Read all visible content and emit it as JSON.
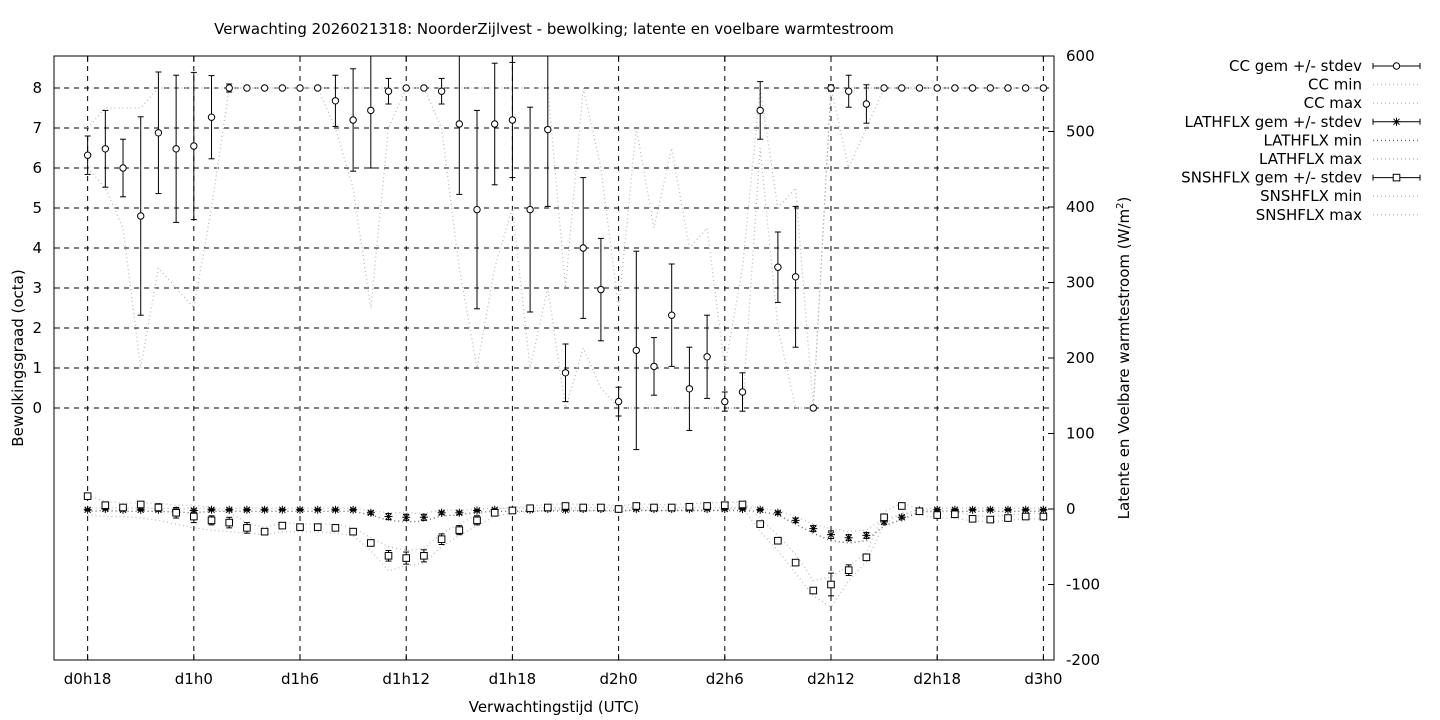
{
  "chart_data": {
    "type": "line",
    "title": "Verwachting 2026021318: NoorderZijlvest - bewolking; latente en voelbare warmtestroom",
    "xlabel": "Verwachtingstijd (UTC)",
    "ylabel_left": "Bewolkingsgraad (octa)",
    "ylabel_right": "Latente en Voelbare warmtestroom (W/m",
    "ylabel_right_sup": "2",
    "ylabel_right_close": ")",
    "x_unit": "hours since d0h0",
    "xlim": [
      16.1,
      72.6
    ],
    "ylim_left": [
      -6.3,
      8.8
    ],
    "ylim_right": [
      -200,
      600
    ],
    "grid": true,
    "legend_position": "outside right",
    "x_ticks": [
      {
        "x": 18,
        "label": "d0h18"
      },
      {
        "x": 24,
        "label": "d1h0"
      },
      {
        "x": 30,
        "label": "d1h6"
      },
      {
        "x": 36,
        "label": "d1h12"
      },
      {
        "x": 42,
        "label": "d1h18"
      },
      {
        "x": 48,
        "label": "d2h0"
      },
      {
        "x": 54,
        "label": "d2h6"
      },
      {
        "x": 60,
        "label": "d2h12"
      },
      {
        "x": 66,
        "label": "d2h18"
      },
      {
        "x": 72,
        "label": "d3h0"
      }
    ],
    "y_ticks_left": [
      "0",
      "1",
      "2",
      "3",
      "4",
      "5",
      "6",
      "7",
      "8"
    ],
    "y_ticks_right": [
      "-200",
      "-100",
      "0",
      "100",
      "200",
      "300",
      "400",
      "500",
      "600"
    ],
    "legend": [
      {
        "label": "CC gem +/- stdev",
        "style": "errorbar-circle"
      },
      {
        "label": "CC min",
        "style": "dotted"
      },
      {
        "label": "CC max",
        "style": "dotted"
      },
      {
        "label": "LATHFLX gem +/- stdev",
        "style": "errorbar-star"
      },
      {
        "label": "LATHFLX min",
        "style": "dotted-dark"
      },
      {
        "label": "LATHFLX max",
        "style": "dotted"
      },
      {
        "label": "SNSHFLX gem +/- stdev",
        "style": "errorbar-square"
      },
      {
        "label": "SNSHFLX min",
        "style": "dotted"
      },
      {
        "label": "SNSHFLX max",
        "style": "dotted"
      }
    ],
    "colors": {
      "axis": "#000000",
      "grid": "#000000",
      "dotted_light": "#bbbbbb",
      "dotted_dark": "#666666"
    },
    "x": [
      18,
      19,
      20,
      21,
      22,
      23,
      24,
      25,
      26,
      27,
      28,
      29,
      30,
      31,
      32,
      33,
      34,
      35,
      36,
      37,
      38,
      39,
      40,
      41,
      42,
      43,
      44,
      45,
      46,
      47,
      48,
      49,
      50,
      51,
      52,
      53,
      54,
      55,
      56,
      57,
      58,
      59,
      60,
      61,
      62,
      63,
      64,
      65,
      66,
      67,
      68,
      69,
      70,
      71,
      72
    ],
    "series": [
      {
        "name": "CC gem +/- stdev",
        "axis": "left",
        "values": [
          6.32,
          6.48,
          6.0,
          4.8,
          6.88,
          6.48,
          6.55,
          7.27,
          8.0,
          8.0,
          8.0,
          8.0,
          8.0,
          8.0,
          7.68,
          7.2,
          7.44,
          7.92,
          8.0,
          8.0,
          7.92,
          7.1,
          4.96,
          7.1,
          7.2,
          4.96,
          6.96,
          0.88,
          4.0,
          2.96,
          0.16,
          1.44,
          1.04,
          2.32,
          0.48,
          1.28,
          0.16,
          0.4,
          7.44,
          3.52,
          3.28,
          0.0,
          8.0,
          7.92,
          7.6,
          8.0,
          8.0,
          8.0,
          8.0,
          8.0,
          8.0,
          8.0,
          8.0,
          8.0,
          8.0
        ],
        "errors": [
          0.48,
          0.96,
          0.72,
          2.48,
          1.52,
          1.84,
          1.84,
          1.04,
          0.1,
          0,
          0,
          0,
          0,
          0,
          0.64,
          1.28,
          1.44,
          0.32,
          0,
          0,
          0.32,
          1.76,
          2.48,
          1.52,
          1.44,
          2.56,
          1.92,
          0.72,
          1.76,
          1.28,
          0.36,
          2.48,
          0.72,
          1.28,
          1.04,
          1.04,
          0.24,
          0.48,
          0.72,
          0.88,
          1.76,
          0.05,
          0.08,
          0.4,
          0.48,
          0,
          0,
          0,
          0,
          0,
          0,
          0,
          0,
          0,
          0
        ]
      },
      {
        "name": "CC min",
        "axis": "left",
        "values": [
          6.0,
          5.5,
          4.5,
          1.0,
          3.5,
          3.0,
          2.5,
          5.0,
          8.0,
          8.0,
          8.0,
          8.0,
          8.0,
          8.0,
          7.0,
          5.5,
          2.5,
          7.0,
          8.0,
          8.0,
          7.0,
          3.5,
          1.0,
          3.5,
          5.0,
          1.0,
          3.0,
          0.0,
          1.5,
          0.5,
          0.0,
          0.0,
          0.0,
          0.0,
          0.0,
          0.0,
          0.0,
          0.0,
          6.5,
          2.0,
          0.0,
          0.0,
          8.0,
          6.0,
          7.0,
          8.0,
          8.0,
          8.0,
          8.0,
          8.0,
          8.0,
          8.0,
          8.0,
          8.0,
          8.0
        ]
      },
      {
        "name": "CC max",
        "axis": "left",
        "values": [
          7.0,
          7.5,
          7.5,
          7.5,
          8.0,
          8.0,
          8.0,
          8.0,
          8.0,
          8.0,
          8.0,
          8.0,
          8.0,
          8.0,
          8.0,
          8.0,
          8.0,
          8.0,
          8.0,
          8.0,
          8.0,
          8.0,
          8.0,
          8.0,
          8.0,
          8.0,
          8.0,
          3.0,
          8.0,
          6.0,
          2.5,
          7.0,
          4.5,
          6.5,
          4.0,
          4.5,
          1.0,
          3.5,
          8.0,
          5.0,
          5.5,
          0.0,
          8.0,
          8.0,
          8.0,
          8.0,
          8.0,
          8.0,
          8.0,
          8.0,
          8.0,
          8.0,
          8.0,
          8.0,
          8.0
        ]
      },
      {
        "name": "LATHFLX gem +/- stdev",
        "axis": "right",
        "values": [
          -1,
          0,
          -1,
          -1,
          -1,
          -2,
          -2,
          -1,
          -1,
          -1,
          -1,
          -1,
          -1,
          -1,
          -1,
          -1,
          -5,
          -10,
          -11,
          -11,
          -5,
          -5,
          -2,
          -1,
          -1,
          -1,
          0,
          -1,
          0,
          0,
          0,
          0,
          0,
          0,
          0,
          0,
          0,
          0,
          -1,
          -5,
          -15,
          -26,
          -34,
          -38,
          -35,
          -17,
          -11,
          -2,
          -1,
          -1,
          -1,
          -1,
          -1,
          -1,
          -1
        ],
        "errors": [
          1,
          1,
          1,
          1,
          1,
          1,
          2,
          1,
          1,
          1,
          1,
          1,
          1,
          1,
          1,
          1,
          2,
          4,
          4,
          4,
          2,
          2,
          1,
          1,
          1,
          1,
          1,
          1,
          1,
          1,
          1,
          1,
          1,
          1,
          1,
          1,
          1,
          1,
          1,
          2,
          3,
          4,
          5,
          4,
          4,
          3,
          2,
          1,
          1,
          1,
          1,
          1,
          1,
          1,
          1
        ]
      },
      {
        "name": "LATHFLX min",
        "axis": "right",
        "values": [
          -3,
          -2,
          -3,
          -3,
          -3,
          -4,
          -5,
          -3,
          -3,
          -3,
          -3,
          -3,
          -3,
          -3,
          -3,
          -3,
          -8,
          -15,
          -17,
          -16,
          -9,
          -8,
          -4,
          -3,
          -3,
          -3,
          -2,
          -3,
          -2,
          -2,
          -2,
          -2,
          -2,
          -2,
          -2,
          -2,
          -2,
          -2,
          -3,
          -8,
          -20,
          -32,
          -42,
          -45,
          -42,
          -22,
          -14,
          -4,
          -3,
          -3,
          -3,
          -3,
          -3,
          -3,
          -3
        ]
      },
      {
        "name": "LATHFLX max",
        "axis": "right",
        "values": [
          1,
          2,
          1,
          1,
          1,
          0,
          1,
          1,
          1,
          1,
          1,
          1,
          1,
          1,
          1,
          1,
          -2,
          -5,
          -5,
          -6,
          -1,
          -2,
          0,
          1,
          1,
          1,
          2,
          1,
          2,
          2,
          2,
          2,
          2,
          2,
          2,
          2,
          2,
          2,
          1,
          -2,
          -10,
          -20,
          -26,
          -30,
          -28,
          -12,
          -8,
          0,
          1,
          1,
          1,
          1,
          1,
          1,
          1
        ]
      },
      {
        "name": "SNSHFLX gem +/- stdev",
        "axis": "right",
        "values": [
          17,
          5,
          2,
          6,
          2,
          -5,
          -10,
          -15,
          -18,
          -25,
          -30,
          -22,
          -24,
          -24,
          -25,
          -30,
          -45,
          -62,
          -65,
          -62,
          -40,
          -28,
          -15,
          -5,
          -2,
          1,
          2,
          4,
          2,
          2,
          0,
          4,
          2,
          2,
          3,
          4,
          5,
          6,
          -20,
          -42,
          -71,
          -108,
          -100,
          -81,
          -64,
          -11,
          4,
          -3,
          -8,
          -7,
          -13,
          -14,
          -12,
          -10,
          -10
        ],
        "errors": [
          3,
          3,
          3,
          3,
          5,
          7,
          8,
          6,
          7,
          7,
          3,
          3,
          3,
          3,
          3,
          3,
          4,
          7,
          8,
          8,
          7,
          6,
          6,
          3,
          3,
          3,
          3,
          3,
          3,
          3,
          3,
          3,
          3,
          3,
          3,
          3,
          3,
          3,
          3,
          3,
          3,
          3,
          15,
          7,
          3,
          3,
          3,
          3,
          3,
          3,
          3,
          3,
          3,
          3,
          3
        ]
      },
      {
        "name": "SNSHFLX min",
        "axis": "right",
        "values": [
          -8,
          -10,
          -10,
          -12,
          -15,
          -20,
          -25,
          -28,
          -30,
          -32,
          -34,
          -30,
          -30,
          -30,
          -32,
          -35,
          -55,
          -82,
          -75,
          -72,
          -50,
          -35,
          -22,
          -10,
          -5,
          -3,
          -2,
          0,
          -3,
          -2,
          -4,
          0,
          -2,
          -2,
          -2,
          -2,
          -1,
          2,
          -30,
          -55,
          -85,
          -115,
          -130,
          -95,
          -70,
          -20,
          -5,
          -8,
          -12,
          -12,
          -16,
          -17,
          -15,
          -13,
          -13
        ]
      },
      {
        "name": "SNSHFLX max",
        "axis": "right",
        "values": [
          18,
          10,
          8,
          8,
          8,
          5,
          5,
          2,
          -5,
          -18,
          -25,
          -18,
          -20,
          -20,
          -20,
          -25,
          -38,
          -50,
          -55,
          -52,
          -32,
          -20,
          -8,
          0,
          2,
          4,
          6,
          7,
          6,
          6,
          4,
          7,
          6,
          6,
          7,
          8,
          9,
          9,
          -12,
          -35,
          -60,
          -95,
          -90,
          -75,
          -58,
          -4,
          8,
          0,
          -4,
          -3,
          -9,
          -10,
          -8,
          -6,
          -6
        ]
      }
    ]
  }
}
